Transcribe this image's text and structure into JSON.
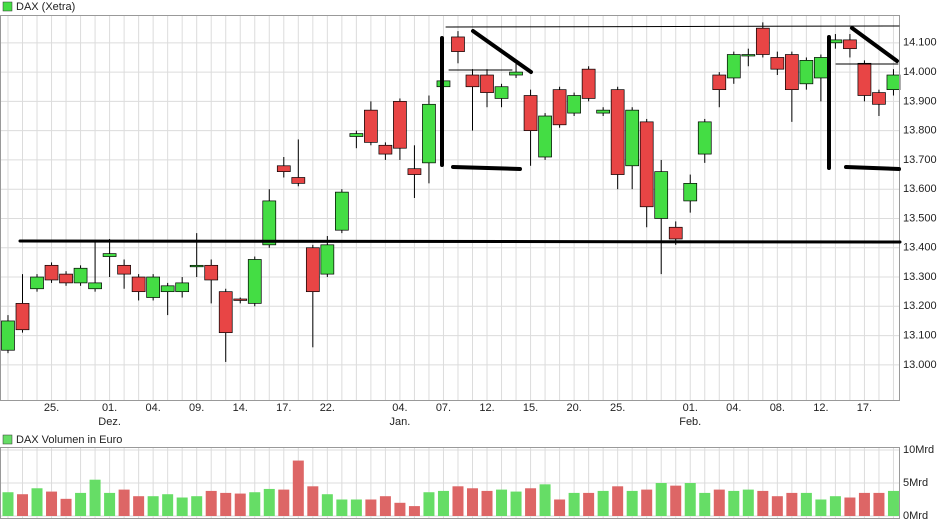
{
  "chart_data": [
    {
      "type": "candlestick",
      "title": "DAX (Xetra)",
      "categories": [
        null,
        null,
        null,
        "25.",
        null,
        null,
        null,
        "01.",
        null,
        null,
        "04.",
        null,
        null,
        "09.",
        null,
        null,
        "14.",
        null,
        null,
        "17.",
        null,
        null,
        "22.",
        null,
        null,
        null,
        null,
        "04.",
        null,
        null,
        "07.",
        null,
        null,
        "12.",
        null,
        null,
        "15.",
        null,
        null,
        "20.",
        null,
        null,
        "25.",
        null,
        null,
        null,
        null,
        "01.",
        null,
        null,
        "04.",
        null,
        null,
        "08.",
        null,
        null,
        "12.",
        null,
        null,
        "17.",
        null,
        null
      ],
      "months": [
        null,
        null,
        null,
        null,
        null,
        null,
        null,
        "Dez.",
        null,
        null,
        null,
        null,
        null,
        null,
        null,
        null,
        null,
        null,
        null,
        null,
        null,
        null,
        null,
        null,
        null,
        null,
        null,
        "Jan.",
        null,
        null,
        null,
        null,
        null,
        null,
        null,
        null,
        null,
        null,
        null,
        null,
        null,
        null,
        null,
        null,
        null,
        null,
        null,
        "Feb.",
        null,
        null,
        null,
        null,
        null,
        null,
        null,
        null,
        null,
        null,
        null,
        null,
        null,
        null
      ],
      "open": [
        13050,
        13210,
        13260,
        13340,
        13310,
        13280,
        13260,
        13370,
        13340,
        13300,
        13230,
        13250,
        13250,
        13335,
        13340,
        13250,
        13225,
        13210,
        13410,
        13680,
        13640,
        13400,
        13310,
        13460,
        13780,
        13870,
        13750,
        13900,
        13670,
        13690,
        13950,
        14120,
        13990,
        13990,
        13910,
        13990,
        13920,
        13710,
        13940,
        13860,
        14010,
        13860,
        13940,
        13680,
        13830,
        13500,
        13470,
        13560,
        13720,
        13990,
        13980,
        14055,
        14150,
        14050,
        14060,
        13960,
        13980,
        14100,
        14110,
        14030,
        13930,
        13940
      ],
      "high": [
        13170,
        13310,
        13310,
        13350,
        13320,
        13340,
        13420,
        13430,
        13360,
        13310,
        13310,
        13280,
        13300,
        13450,
        13360,
        13260,
        13230,
        13370,
        13600,
        13710,
        13770,
        13410,
        13440,
        13600,
        13800,
        13900,
        13760,
        13910,
        13750,
        13920,
        13970,
        14140,
        14010,
        14010,
        13960,
        14030,
        13940,
        13860,
        13950,
        13930,
        14020,
        13880,
        13950,
        13880,
        13840,
        13700,
        13490,
        13650,
        13840,
        14000,
        14070,
        14080,
        14170,
        14070,
        14070,
        14050,
        14060,
        14130,
        14130,
        14040,
        13940,
        14010
      ],
      "low": [
        13040,
        13110,
        13250,
        13280,
        13270,
        13270,
        13250,
        13300,
        13260,
        13220,
        13220,
        13170,
        13230,
        13300,
        13210,
        13010,
        13210,
        13200,
        13400,
        13640,
        13610,
        13060,
        13300,
        13450,
        13740,
        13750,
        13700,
        13700,
        13570,
        13620,
        13950,
        14030,
        13800,
        13880,
        13880,
        13980,
        13680,
        13700,
        13810,
        13850,
        13900,
        13850,
        13600,
        13600,
        13470,
        13310,
        13410,
        13520,
        13690,
        13880,
        13960,
        14020,
        14050,
        13990,
        13830,
        13940,
        13900,
        14080,
        14050,
        13900,
        13850,
        13920
      ],
      "close": [
        13150,
        13120,
        13300,
        13290,
        13280,
        13330,
        13280,
        13380,
        13310,
        13250,
        13300,
        13270,
        13280,
        13340,
        13290,
        13110,
        13220,
        13360,
        13560,
        13660,
        13620,
        13250,
        13410,
        13590,
        13790,
        13760,
        13720,
        13740,
        13650,
        13890,
        13970,
        14070,
        13950,
        13930,
        13950,
        14000,
        13800,
        13850,
        13820,
        13920,
        13910,
        13870,
        13650,
        13870,
        13540,
        13660,
        13430,
        13620,
        13830,
        13940,
        14060,
        14060,
        14060,
        14010,
        13940,
        14040,
        14050,
        14110,
        14080,
        13920,
        13890,
        13990
      ],
      "up_color": "#44dd44",
      "down_color": "#e84545",
      "ylim": [
        12880,
        14195
      ],
      "yticks": [
        {
          "value": 13000,
          "label": "13.000"
        },
        {
          "value": 13100,
          "label": "13.100"
        },
        {
          "value": 13200,
          "label": "13.200"
        },
        {
          "value": 13300,
          "label": "13.300"
        },
        {
          "value": 13400,
          "label": "13.400"
        },
        {
          "value": 13500,
          "label": "13.500"
        },
        {
          "value": 13600,
          "label": "13.600"
        },
        {
          "value": 13700,
          "label": "13.700"
        },
        {
          "value": 13800,
          "label": "13.800"
        },
        {
          "value": 13900,
          "label": "13.900"
        },
        {
          "value": 14000,
          "label": "14.000"
        },
        {
          "value": 14100,
          "label": "14.100"
        }
      ],
      "grid": true
    },
    {
      "type": "bar",
      "title": "DAX Volumen in Euro",
      "values": [
        3.6,
        3.3,
        4.2,
        3.7,
        2.6,
        3.5,
        5.5,
        3.5,
        4.0,
        3.0,
        3.0,
        3.3,
        2.8,
        3.0,
        3.8,
        3.5,
        3.4,
        3.6,
        4.1,
        4.0,
        8.4,
        4.5,
        3.3,
        2.5,
        2.5,
        2.5,
        3.0,
        2.0,
        1.5,
        3.6,
        3.8,
        4.5,
        4.2,
        3.8,
        4.0,
        3.7,
        4.2,
        4.8,
        2.5,
        3.5,
        3.5,
        3.8,
        4.5,
        3.8,
        4.0,
        5.0,
        4.6,
        5.0,
        3.5,
        4.0,
        3.8,
        4.0,
        3.8,
        3.0,
        3.5,
        3.5,
        2.5,
        3.0,
        2.8,
        3.5,
        3.5,
        3.8
      ],
      "up_color": "#66dd66",
      "down_color": "#dd6666",
      "ylim": [
        0,
        10
      ],
      "yticks": [
        {
          "value": 0,
          "label": "0Mrd"
        },
        {
          "value": 5,
          "label": "5Mrd"
        },
        {
          "value": 10,
          "label": "10Mrd"
        }
      ],
      "grid": true
    }
  ]
}
